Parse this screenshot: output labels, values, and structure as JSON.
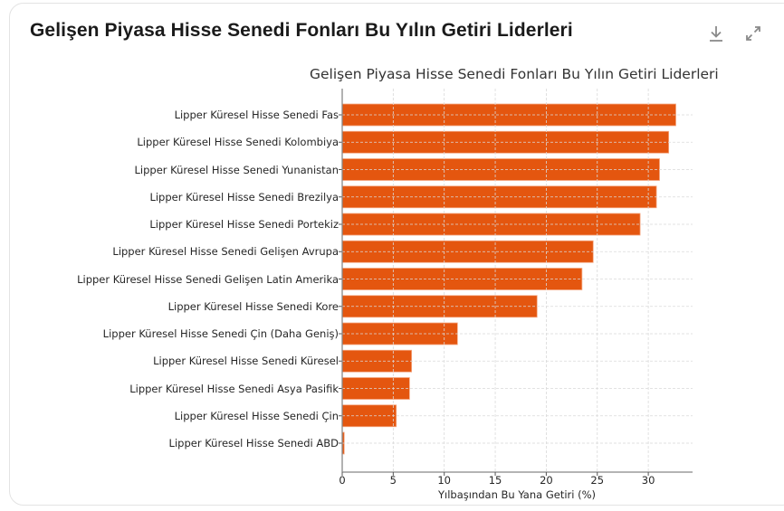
{
  "card": {
    "title": "Gelişen Piyasa Hisse Senedi Fonları Bu Yılın Getiri Liderleri",
    "icons": {
      "download": "download-icon",
      "expand": "expand-icon"
    }
  },
  "colors": {
    "bar": "#E4560F",
    "bar_edge": "#F5A882",
    "grid": "#d9d9d9",
    "axis": "#888888"
  },
  "chart_data": {
    "type": "bar",
    "orientation": "horizontal",
    "title": "Gelişen Piyasa Hisse Senedi Fonları Bu Yılın Getiri Liderleri",
    "xlabel": "Yılbaşından Bu Yana Getiri (%)",
    "ylabel": "",
    "xlim": [
      0,
      34.4
    ],
    "xticks": [
      0,
      5,
      10,
      15,
      20,
      25,
      30
    ],
    "grid": true,
    "categories": [
      "Lipper Küresel Hisse Senedi Fas",
      "Lipper Küresel Hisse Senedi Kolombiya",
      "Lipper Küresel Hisse Senedi Yunanistan",
      "Lipper Küresel Hisse Senedi Brezilya",
      "Lipper Küresel Hisse Senedi Portekiz",
      "Lipper Küresel Hisse Senedi Gelişen Avrupa",
      "Lipper Küresel Hisse Senedi Gelişen Latin Amerika",
      "Lipper Küresel Hisse Senedi Kore",
      "Lipper Küresel Hisse Senedi Çin (Daha Geniş)",
      "Lipper Küresel Hisse Senedi Küresel",
      "Lipper Küresel Hisse Senedi Asya Pasifik",
      "Lipper Küresel Hisse Senedi Çin",
      "Lipper Küresel Hisse Senedi ABD"
    ],
    "values": [
      32.7,
      32.0,
      31.1,
      30.8,
      29.2,
      24.6,
      23.5,
      19.1,
      11.3,
      6.8,
      6.6,
      5.3,
      0.2
    ]
  }
}
